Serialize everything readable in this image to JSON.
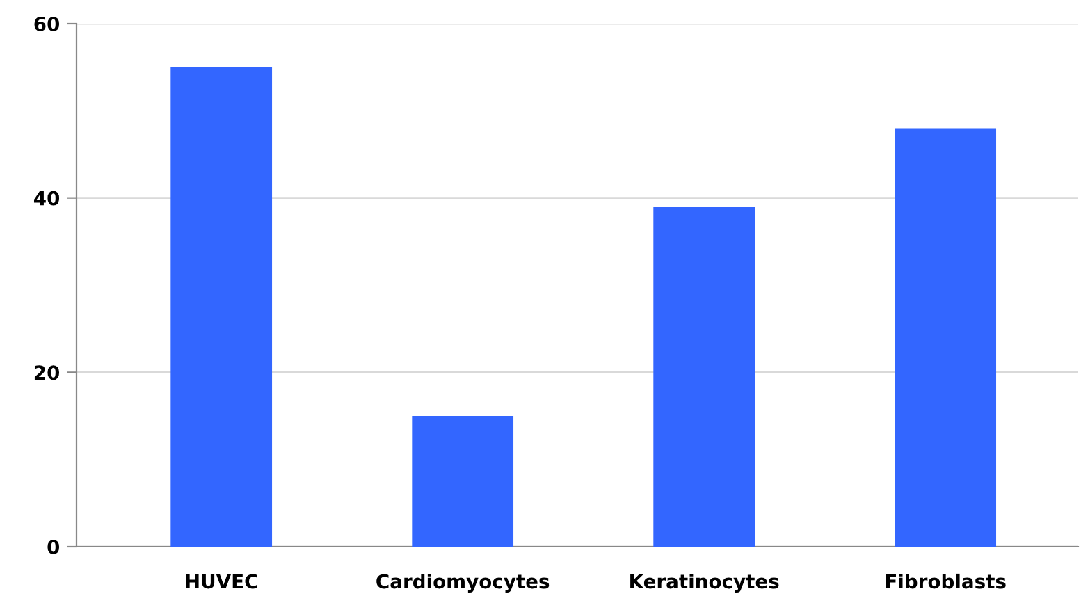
{
  "chart_data": {
    "type": "bar",
    "categories": [
      "HUVEC",
      "Cardiomyocytes",
      "Keratinocytes",
      "Fibroblasts"
    ],
    "values": [
      55,
      15,
      39,
      48
    ],
    "color": "#3366ff",
    "ylim": [
      0,
      60
    ],
    "yticks": [
      0,
      20,
      40,
      60
    ],
    "grid": "y",
    "legend": false
  }
}
